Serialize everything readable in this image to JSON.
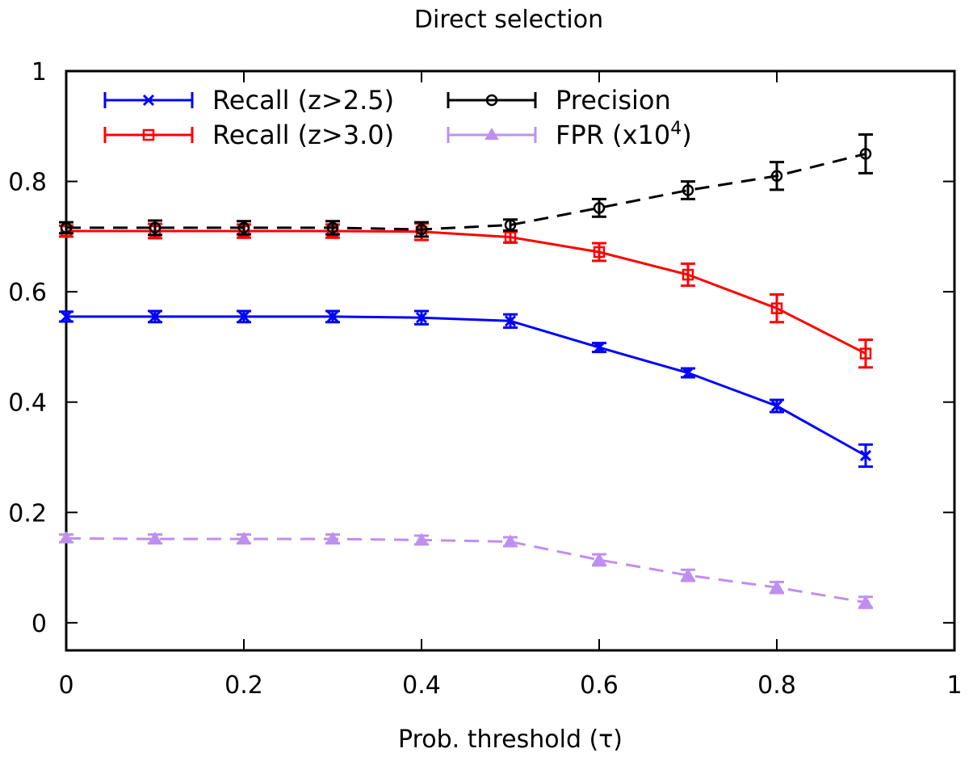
{
  "chart_data": {
    "type": "line",
    "title": "Direct selection",
    "xlabel": "Prob. threshold (τ)",
    "ylabel": "",
    "xlim": [
      0,
      1
    ],
    "ylim": [
      -0.05,
      1
    ],
    "xticks": [
      0,
      0.2,
      0.4,
      0.6,
      0.8,
      1
    ],
    "xtick_labels": [
      "0",
      "0.2",
      "0.4",
      "0.6",
      "0.8",
      "1"
    ],
    "yticks": [
      0,
      0.2,
      0.4,
      0.6,
      0.8,
      1
    ],
    "ytick_labels": [
      "0",
      "0.2",
      "0.4",
      "0.6",
      "0.8",
      "1"
    ],
    "grid": false,
    "legend_position": "top",
    "x": [
      0,
      0.1,
      0.2,
      0.3,
      0.4,
      0.5,
      0.6,
      0.7,
      0.8,
      0.9
    ],
    "series": [
      {
        "name": "Recall (z>2.5)",
        "color": "#0000ff",
        "marker": "x",
        "line": "solid",
        "values": [
          0.555,
          0.555,
          0.555,
          0.555,
          0.553,
          0.547,
          0.499,
          0.453,
          0.393,
          0.303
        ],
        "errors": [
          0.009,
          0.01,
          0.01,
          0.01,
          0.012,
          0.012,
          0.008,
          0.008,
          0.011,
          0.02
        ]
      },
      {
        "name": "Recall (z>3.0)",
        "color": "#ff0000",
        "marker": "square",
        "line": "solid",
        "values": [
          0.71,
          0.71,
          0.71,
          0.71,
          0.709,
          0.699,
          0.672,
          0.631,
          0.57,
          0.488
        ],
        "errors": [
          0.01,
          0.013,
          0.012,
          0.012,
          0.015,
          0.01,
          0.016,
          0.02,
          0.025,
          0.025
        ]
      },
      {
        "name": "Precision",
        "color": "#000000",
        "marker": "circle",
        "line": "dashed",
        "values": [
          0.716,
          0.716,
          0.716,
          0.716,
          0.713,
          0.721,
          0.752,
          0.784,
          0.81,
          0.85
        ],
        "errors": [
          0.01,
          0.013,
          0.012,
          0.012,
          0.013,
          0.01,
          0.016,
          0.016,
          0.025,
          0.035
        ]
      },
      {
        "name": "FPR (x10⁴)",
        "color": "#bf8ff0",
        "marker": "triangle",
        "line": "dashed",
        "values": [
          0.153,
          0.152,
          0.152,
          0.152,
          0.15,
          0.147,
          0.114,
          0.086,
          0.064,
          0.037
        ],
        "errors": [
          0.007,
          0.008,
          0.008,
          0.008,
          0.008,
          0.008,
          0.01,
          0.01,
          0.01,
          0.01
        ]
      }
    ],
    "legend_entries": [
      {
        "label": "Recall (z>2.5)"
      },
      {
        "label": "Recall (z>3.0)"
      },
      {
        "label": "Precision"
      },
      {
        "label": "FPR (x10",
        "superscript": "4",
        "suffix": ")"
      }
    ]
  }
}
